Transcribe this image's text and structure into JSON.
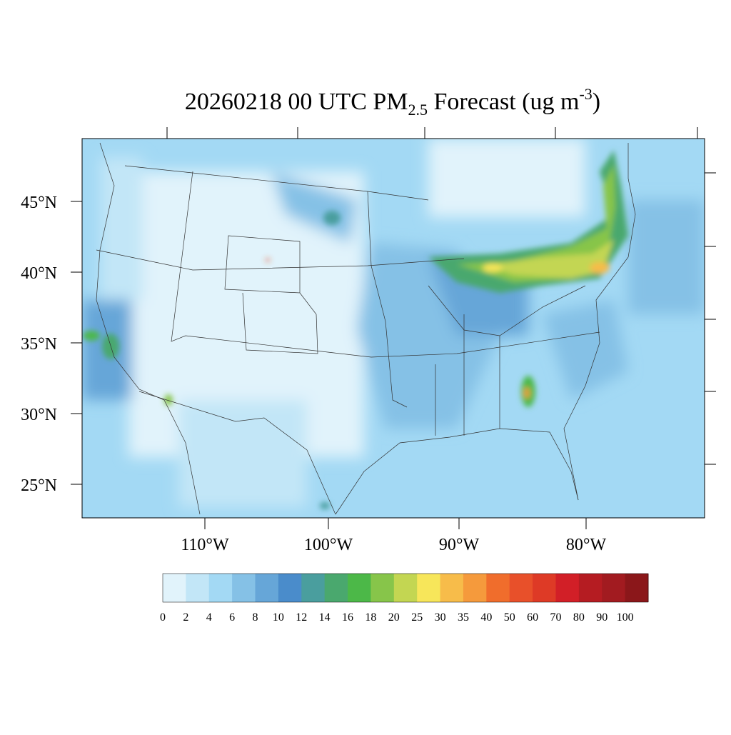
{
  "title": {
    "main": "20260218 00 UTC PM",
    "sub": "2.5",
    "rest": " Forecast (ug m",
    "sup": "-3",
    "end": ")"
  },
  "lat_labels": [
    "45°N",
    "40°N",
    "35°N",
    "30°N",
    "25°N"
  ],
  "lon_labels": [
    "110°W",
    "100°W",
    "90°W",
    "80°W"
  ],
  "colorbar": {
    "labels": [
      0,
      2,
      4,
      6,
      8,
      10,
      12,
      14,
      16,
      18,
      20,
      25,
      30,
      35,
      40,
      50,
      60,
      70,
      80,
      90,
      100
    ],
    "colors": [
      "#e1f3fb",
      "#c2e6f7",
      "#a3d9f4",
      "#85c1e6",
      "#66a6d8",
      "#4a8ccb",
      "#4a9e9e",
      "#4aa86e",
      "#4cb848",
      "#87c54a",
      "#c3d652",
      "#f7e65a",
      "#f7bc4a",
      "#f59a3c",
      "#f06d2c",
      "#e8502a",
      "#de3a26",
      "#d21f27",
      "#b51c22",
      "#a21b20",
      "#8b171a"
    ]
  }
}
